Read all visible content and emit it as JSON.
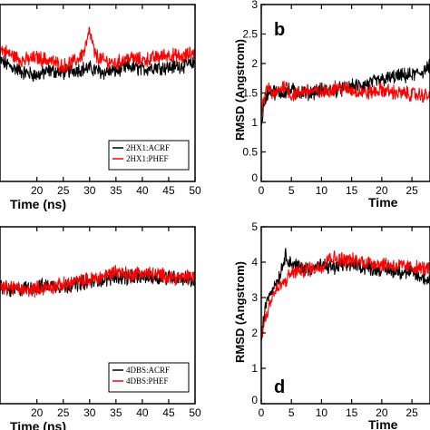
{
  "chart_data": [
    {
      "id": "a",
      "type": "line",
      "panel_letter": "",
      "xlabel": "Time (ns)",
      "ylabel": "",
      "xlim": [
        13,
        50
      ],
      "ylim": [
        0,
        3
      ],
      "xticks": [
        20,
        25,
        30,
        35,
        40,
        45,
        50
      ],
      "xtick_labels": [
        "20",
        "25",
        "30",
        "35",
        "40",
        "45",
        "50"
      ],
      "legend": {
        "position": "bottom-right",
        "entries": [
          "2HX1:ACRF",
          "2HX1:PHEF"
        ]
      },
      "series": [
        {
          "name": "2HX1:ACRF",
          "color": "#000000",
          "x": [
            13,
            15,
            17.5,
            20,
            22.5,
            25,
            27.5,
            30,
            32.5,
            35,
            37.5,
            40,
            42.5,
            45,
            47.5,
            50
          ],
          "y": [
            2.05,
            1.95,
            1.85,
            1.8,
            1.88,
            1.85,
            1.9,
            1.92,
            1.85,
            1.88,
            1.95,
            1.9,
            1.95,
            1.93,
            1.97,
            2.0
          ]
        },
        {
          "name": "2HX1:PHEF",
          "color": "#ff0000",
          "x": [
            13,
            15,
            17.5,
            20,
            22.5,
            25,
            27.5,
            29,
            30,
            31,
            32.5,
            35,
            37.5,
            40,
            42.5,
            45,
            47.5,
            50
          ],
          "y": [
            2.25,
            2.15,
            2.05,
            2.1,
            2.05,
            1.95,
            2.05,
            2.2,
            2.55,
            2.15,
            2.05,
            2.0,
            2.1,
            2.05,
            2.1,
            2.15,
            2.1,
            2.2
          ]
        }
      ]
    },
    {
      "id": "b",
      "type": "line",
      "panel_letter": "b",
      "xlabel": "Time",
      "ylabel": "RMSD (Angstrom)",
      "xlim": [
        0,
        28
      ],
      "ylim": [
        0,
        3
      ],
      "xticks": [
        0,
        5,
        10,
        15,
        20,
        25
      ],
      "xtick_labels": [
        "0",
        "5",
        "10",
        "15",
        "20",
        "25"
      ],
      "yticks": [
        0,
        0.5,
        1,
        1.5,
        2,
        2.5,
        3
      ],
      "ytick_labels": [
        "0",
        "0.5",
        "1",
        "1.5",
        "2",
        "2.5",
        "3"
      ],
      "series": [
        {
          "name": "",
          "color": "#000000",
          "x": [
            0,
            0.5,
            1,
            1.5,
            2,
            3,
            5,
            7.5,
            10,
            12.5,
            15,
            17.5,
            20,
            22.5,
            25,
            26.5,
            28
          ],
          "y": [
            1.0,
            1.3,
            1.5,
            1.55,
            1.52,
            1.5,
            1.55,
            1.5,
            1.55,
            1.55,
            1.6,
            1.65,
            1.72,
            1.78,
            1.8,
            1.85,
            1.95
          ]
        },
        {
          "name": "",
          "color": "#ff0000",
          "x": [
            0,
            0.5,
            1,
            1.5,
            2,
            3,
            4,
            5,
            7.5,
            10,
            12.5,
            15,
            17.5,
            20,
            22.5,
            25,
            28
          ],
          "y": [
            1.1,
            1.4,
            1.6,
            1.55,
            1.45,
            1.55,
            1.65,
            1.45,
            1.55,
            1.5,
            1.6,
            1.55,
            1.5,
            1.55,
            1.5,
            1.48,
            1.45
          ]
        }
      ]
    },
    {
      "id": "c",
      "type": "line",
      "panel_letter": "",
      "xlabel": "Time (ns)",
      "ylabel": "",
      "xlim": [
        13,
        50
      ],
      "ylim": [
        0,
        5
      ],
      "xticks": [
        20,
        25,
        30,
        35,
        40,
        45,
        50
      ],
      "xtick_labels": [
        "20",
        "25",
        "30",
        "35",
        "40",
        "45",
        "50"
      ],
      "legend": {
        "position": "bottom-right",
        "entries": [
          "4DBS:ACRF",
          "4DBS:PHEF"
        ]
      },
      "series": [
        {
          "name": "4DBS:ACRF",
          "color": "#000000",
          "x": [
            13,
            15,
            17.5,
            20,
            22.5,
            25,
            27.5,
            30,
            32.5,
            35,
            37.5,
            40,
            42.5,
            45,
            47.5,
            50
          ],
          "y": [
            3.35,
            3.2,
            3.25,
            3.3,
            3.35,
            3.3,
            3.4,
            3.45,
            3.5,
            3.6,
            3.55,
            3.6,
            3.55,
            3.6,
            3.55,
            3.5
          ]
        },
        {
          "name": "4DBS:PHEF",
          "color": "#ff0000",
          "x": [
            13,
            15,
            17.5,
            20,
            22.5,
            25,
            27.5,
            30,
            32.5,
            35,
            37.5,
            40,
            42.5,
            45,
            47.5,
            50
          ],
          "y": [
            3.25,
            3.3,
            3.2,
            3.25,
            3.3,
            3.35,
            3.45,
            3.5,
            3.6,
            3.75,
            3.65,
            3.7,
            3.65,
            3.6,
            3.55,
            3.6
          ]
        }
      ]
    },
    {
      "id": "d",
      "type": "line",
      "panel_letter": "d",
      "xlabel": "Time",
      "ylabel": "RMSD (Angstrom)",
      "xlim": [
        0,
        28
      ],
      "ylim": [
        0,
        5
      ],
      "xticks": [
        0,
        5,
        10,
        15,
        20,
        25
      ],
      "xtick_labels": [
        "0",
        "5",
        "10",
        "15",
        "20",
        "25"
      ],
      "yticks": [
        0,
        1,
        2,
        3,
        4,
        5
      ],
      "ytick_labels": [
        "0",
        "1",
        "2",
        "3",
        "4",
        "5"
      ],
      "series": [
        {
          "name": "",
          "color": "#000000",
          "x": [
            0,
            0.5,
            1,
            2,
            3,
            3.5,
            4,
            4.5,
            5,
            7.5,
            10,
            12.5,
            15,
            17.5,
            20,
            22.5,
            25,
            26.5,
            28
          ],
          "y": [
            1.8,
            2.5,
            3.0,
            3.3,
            3.6,
            3.9,
            4.2,
            4.1,
            3.95,
            3.8,
            3.9,
            3.85,
            3.95,
            3.85,
            3.8,
            3.75,
            3.7,
            3.55,
            3.5
          ]
        },
        {
          "name": "",
          "color": "#ff0000",
          "x": [
            0,
            0.5,
            1,
            1.5,
            2,
            3,
            4,
            5,
            7.5,
            10,
            11,
            12.5,
            15,
            17.5,
            20,
            22.5,
            25,
            28
          ],
          "y": [
            1.9,
            2.3,
            2.6,
            2.9,
            3.1,
            3.3,
            3.45,
            3.7,
            3.8,
            3.85,
            4.15,
            4.1,
            4.05,
            4.0,
            3.95,
            3.9,
            3.85,
            3.8
          ]
        }
      ]
    }
  ]
}
